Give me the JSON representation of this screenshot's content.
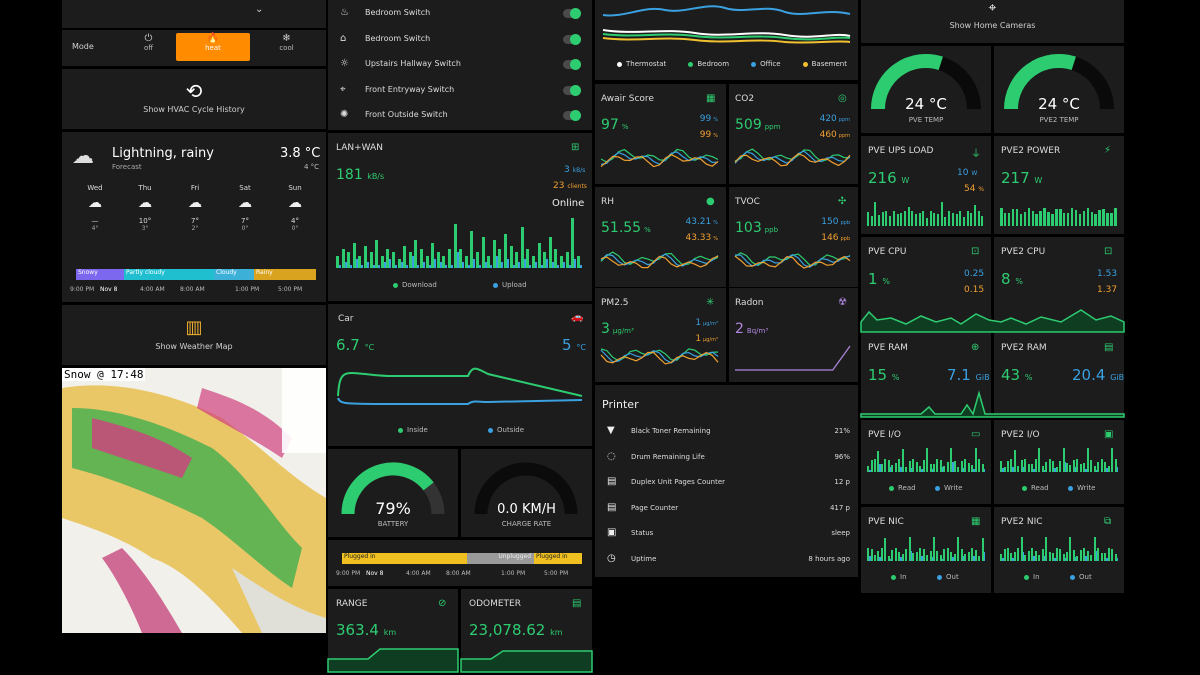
{
  "hvac": {
    "mode_label": "Mode",
    "modes": [
      {
        "label": "off",
        "icon": "power-icon"
      },
      {
        "label": "heat",
        "icon": "flame-icon"
      },
      {
        "label": "cool",
        "icon": "snowflake-icon"
      }
    ],
    "history_label": "Show HVAC Cycle History"
  },
  "weather": {
    "condition": "Lightning, rainy",
    "forecast_label": "Forecast",
    "temp": "3.8 °C",
    "low": "4 °C",
    "days": [
      {
        "day": "Wed",
        "hi": "—",
        "lo": "4°"
      },
      {
        "day": "Thu",
        "hi": "10°",
        "lo": "3°"
      },
      {
        "day": "Fri",
        "hi": "7°",
        "lo": "2°"
      },
      {
        "day": "Sat",
        "hi": "7°",
        "lo": "0°"
      },
      {
        "day": "Sun",
        "hi": "4°",
        "lo": "0°"
      }
    ],
    "timeline": [
      {
        "label": "Snowy",
        "color": "#7b68ee"
      },
      {
        "label": "Partly cloudy",
        "color": "#1fbfd0"
      },
      {
        "label": "Cloudy",
        "color": "#3db0d8"
      },
      {
        "label": "Rainy",
        "color": "#d9a320"
      }
    ],
    "times": [
      "9:00 PM",
      "Nov 8",
      "4:00 AM",
      "8:00 AM",
      "1:00 PM",
      "5:00 PM"
    ],
    "map_label": "Show Weather Map",
    "radar_title": "Snow @ 17:48"
  },
  "switches": [
    {
      "label": "Bedroom Switch",
      "icon": "light-icon"
    },
    {
      "label": "Bedroom Switch",
      "icon": "lamp-icon"
    },
    {
      "label": "Upstairs Hallway Switch",
      "icon": "ceiling-light-icon"
    },
    {
      "label": "Front Entryway Switch",
      "icon": "porch-light-icon"
    },
    {
      "label": "Front Outside Switch",
      "icon": "outdoor-light-icon"
    }
  ],
  "network": {
    "title": "LAN+WAN",
    "down": "181",
    "down_unit": "kB/s",
    "up": "3",
    "up_unit": "kB/s",
    "clients": "23",
    "clients_unit": "clients",
    "status": "Online",
    "legend": [
      "Download",
      "Upload"
    ],
    "chart_data": {
      "type": "bar",
      "series": [
        {
          "name": "Download",
          "values": [
            4,
            6,
            5,
            8,
            4,
            7,
            5,
            9,
            4,
            6,
            5,
            3,
            7,
            5,
            9,
            6,
            4,
            8,
            5,
            4,
            6,
            14,
            6,
            4,
            12,
            5,
            10,
            4,
            9,
            6,
            11,
            7,
            5,
            13,
            6,
            4,
            8,
            5,
            10,
            6,
            4,
            5,
            16,
            4
          ]
        },
        {
          "name": "Upload",
          "values": [
            1,
            2,
            1,
            3,
            1,
            2,
            1,
            1,
            2,
            3,
            1,
            2,
            1,
            4,
            1,
            2,
            1,
            3,
            2,
            1,
            1,
            5,
            2,
            1,
            3,
            1,
            2,
            1,
            4,
            2,
            3,
            1,
            2,
            3,
            1,
            2,
            1,
            3,
            2,
            1,
            2,
            1,
            3,
            1
          ]
        }
      ]
    }
  },
  "car": {
    "title": "Car",
    "inside": "6.7",
    "outside": "5",
    "unit": "°C",
    "legend": [
      "Inside",
      "Outside"
    ],
    "battery": "79%",
    "battery_label": "BATTERY",
    "battery_fraction": 0.79,
    "charge": "0.0 KM/H",
    "charge_label": "CHARGE RATE",
    "plug_timeline": [
      "Plugged in",
      "Unplugged",
      "Plugged in"
    ],
    "times": [
      "9:00 PM",
      "Nov 8",
      "4:00 AM",
      "8:00 AM",
      "1:00 PM",
      "5:00 PM"
    ],
    "range_label": "RANGE",
    "range": "363.4",
    "range_unit": "km",
    "odo_label": "ODOMETER",
    "odo": "23,078.62",
    "odo_unit": "km"
  },
  "thermo": {
    "legend": [
      "Thermostat",
      "Bedroom",
      "Office",
      "Basement"
    ],
    "colors": [
      "#ffffff",
      "#2ecc71",
      "#3aa0e0",
      "#f0c030"
    ]
  },
  "air": [
    {
      "title": "Awair Score",
      "value": "97",
      "unit": "%",
      "v1": "99",
      "u1": "%",
      "v2": "99",
      "u2": "%",
      "icon": "grid-icon"
    },
    {
      "title": "CO2",
      "value": "509",
      "unit": "ppm",
      "v1": "420",
      "u1": "ppm",
      "v2": "460",
      "u2": "ppm",
      "icon": "co2-icon"
    },
    {
      "title": "RH",
      "value": "51.55",
      "unit": "%",
      "v1": "43.21",
      "u1": "%",
      "v2": "43.33",
      "u2": "%",
      "icon": "drop-icon"
    },
    {
      "title": "TVOC",
      "value": "103",
      "unit": "ppb",
      "v1": "150",
      "u1": "ppb",
      "v2": "146",
      "u2": "ppb",
      "icon": "molecule-icon"
    },
    {
      "title": "PM2.5",
      "value": "3",
      "unit": "µg/m³",
      "v1": "1",
      "u1": "µg/m³",
      "v2": "1",
      "u2": "µg/m³",
      "icon": "particles-icon"
    },
    {
      "title": "Radon",
      "value": "2",
      "unit": "Bq/m³",
      "icon": "radiation-icon"
    }
  ],
  "printer": {
    "title": "Printer",
    "rows": [
      {
        "label": "Black Toner Remaining",
        "value": "21%",
        "icon": "toner-icon"
      },
      {
        "label": "Drum Remaining Life",
        "value": "96%",
        "icon": "drum-icon"
      },
      {
        "label": "Duplex Unit Pages Counter",
        "value": "12 p",
        "icon": "document-icon"
      },
      {
        "label": "Page Counter",
        "value": "417 p",
        "icon": "document-icon"
      },
      {
        "label": "Status",
        "value": "sleep",
        "icon": "printer-icon"
      },
      {
        "label": "Uptime",
        "value": "8 hours ago",
        "icon": "clock-icon"
      }
    ]
  },
  "cameras": {
    "label": "Show Home Cameras"
  },
  "servers": {
    "pve_temp": "24 °C",
    "pve_temp_label": "PVE TEMP",
    "pve_temp_fraction": 0.6,
    "pve2_temp": "24 °C",
    "pve2_temp_label": "PVE2 TEMP",
    "pve2_temp_fraction": 0.6,
    "ups_title": "PVE UPS LOAD",
    "ups": "216",
    "ups_unit": "W",
    "ups_v1": "10",
    "ups_u1": "W",
    "ups_v2": "54",
    "ups_u2": "%",
    "pwr2_title": "PVE2 POWER",
    "pwr2": "217",
    "pwr2_unit": "W",
    "cpu_title": "PVE CPU",
    "cpu": "1",
    "cpu_unit": "%",
    "cpu_v1": "0.25",
    "cpu_v2": "0.15",
    "cpu2_title": "PVE2 CPU",
    "cpu2": "8",
    "cpu2_unit": "%",
    "cpu2_v1": "1.53",
    "cpu2_v2": "1.37",
    "ram_title": "PVE RAM",
    "ram": "15",
    "ram_unit": "%",
    "ram_gib": "7.1",
    "ram_gib_unit": "GiB",
    "ram2_title": "PVE2 RAM",
    "ram2": "43",
    "ram2_unit": "%",
    "ram2_gib": "20.4",
    "ram2_gib_unit": "GiB",
    "io_title": "PVE I/O",
    "io2_title": "PVE2 I/O",
    "io_legend": [
      "Read",
      "Write"
    ],
    "nic_title": "PVE NIC",
    "nic2_title": "PVE2 NIC",
    "nic_legend": [
      "In",
      "Out"
    ]
  }
}
